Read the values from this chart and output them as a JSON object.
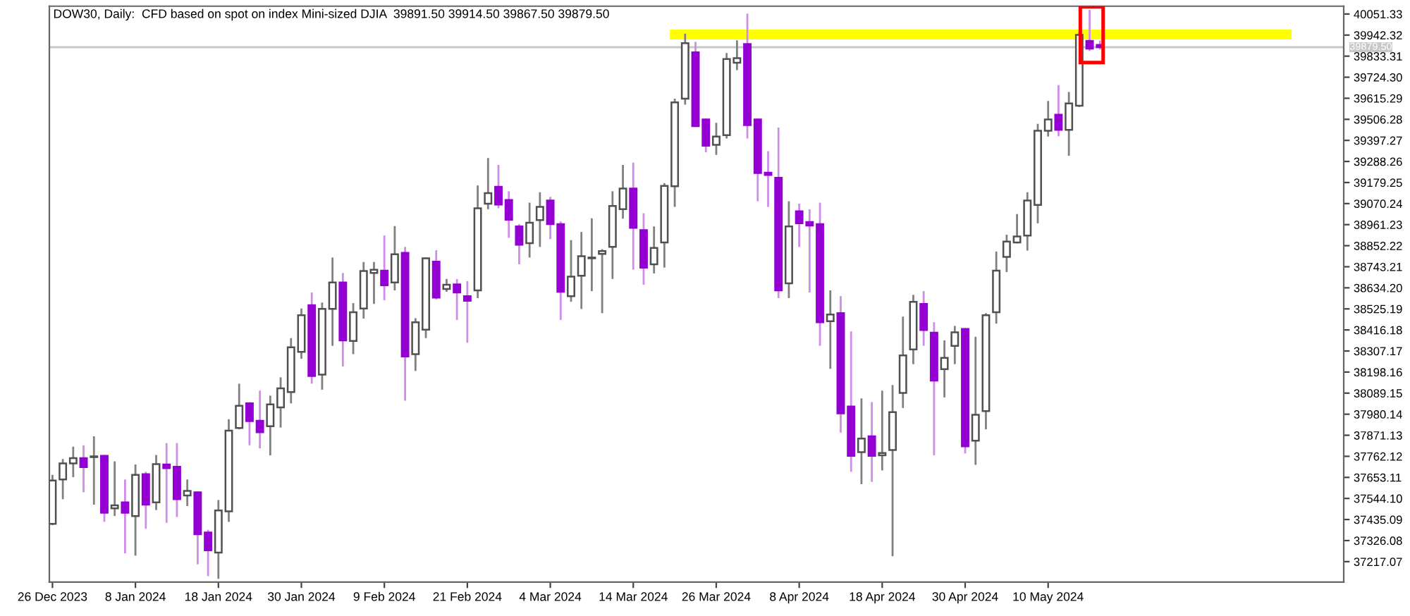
{
  "chart_data": {
    "type": "candlestick",
    "title": "DOW30, Daily:  CFD based on spot on index Mini-sized DJIA  39891.50 39914.50 39867.50 39879.50",
    "categories": [
      "26 Dec 2023",
      null,
      null,
      null,
      null,
      null,
      null,
      null,
      "8 Jan 2024",
      null,
      null,
      null,
      null,
      null,
      null,
      null,
      "18 Jan 2024",
      null,
      null,
      null,
      null,
      null,
      null,
      null,
      "30 Jan 2024",
      null,
      null,
      null,
      null,
      null,
      null,
      null,
      "9 Feb 2024",
      null,
      null,
      null,
      null,
      null,
      null,
      null,
      "21 Feb 2024",
      null,
      null,
      null,
      null,
      null,
      null,
      null,
      "4 Mar 2024",
      null,
      null,
      null,
      null,
      null,
      null,
      null,
      "14 Mar 2024",
      null,
      null,
      null,
      null,
      null,
      null,
      null,
      "26 Mar 2024",
      null,
      null,
      null,
      null,
      null,
      null,
      null,
      "8 Apr 2024",
      null,
      null,
      null,
      null,
      null,
      null,
      null,
      "18 Apr 2024",
      null,
      null,
      null,
      null,
      null,
      null,
      null,
      "30 Apr 2024",
      null,
      null,
      null,
      null,
      null,
      null,
      null,
      "10 May 2024",
      null,
      null,
      null,
      null,
      null,
      null,
      null,
      null,
      null,
      null,
      null,
      null,
      null,
      null,
      null,
      null,
      null,
      null,
      null,
      null,
      null,
      null,
      null,
      null,
      null,
      null,
      null,
      null
    ],
    "ohlc": [
      [
        37413,
        37666,
        37406,
        37637
      ],
      [
        37642,
        37748,
        37540,
        37725
      ],
      [
        37725,
        37812,
        37654,
        37753
      ],
      [
        37753,
        37819,
        37576,
        37706
      ],
      [
        37758,
        37866,
        37512,
        37760
      ],
      [
        37765,
        37769,
        37423,
        37470
      ],
      [
        37493,
        37736,
        37453,
        37508
      ],
      [
        37524,
        37642,
        37260,
        37470
      ],
      [
        37453,
        37720,
        37248,
        37666
      ],
      [
        37670,
        37682,
        37387,
        37512
      ],
      [
        37524,
        37769,
        37484,
        37722
      ],
      [
        37720,
        37831,
        37418,
        37701
      ],
      [
        37708,
        37831,
        37448,
        37540
      ],
      [
        37559,
        37642,
        37505,
        37583
      ],
      [
        37576,
        37581,
        37203,
        37359
      ],
      [
        37368,
        37382,
        37142,
        37276
      ],
      [
        37264,
        37536,
        37128,
        37482
      ],
      [
        37477,
        37954,
        37423,
        37895
      ],
      [
        37909,
        38138,
        37902,
        38024
      ],
      [
        38036,
        38043,
        37819,
        37944
      ],
      [
        37946,
        38102,
        37803,
        37887
      ],
      [
        37918,
        38076,
        37767,
        38031
      ],
      [
        38015,
        38171,
        37911,
        38114
      ],
      [
        38095,
        38374,
        38036,
        38326
      ],
      [
        38303,
        38527,
        38267,
        38492
      ],
      [
        38544,
        38610,
        38138,
        38178
      ],
      [
        38185,
        38558,
        38107,
        38525
      ],
      [
        38525,
        38791,
        38334,
        38662
      ],
      [
        38662,
        38711,
        38227,
        38362
      ],
      [
        38359,
        38555,
        38291,
        38508
      ],
      [
        38527,
        38768,
        38475,
        38721
      ],
      [
        38711,
        38768,
        38551,
        38728
      ],
      [
        38723,
        38905,
        38570,
        38647
      ],
      [
        38662,
        38954,
        38621,
        38808
      ],
      [
        38815,
        38846,
        38050,
        38279
      ],
      [
        38291,
        38477,
        38204,
        38456
      ],
      [
        38418,
        38791,
        38374,
        38787
      ],
      [
        38770,
        38829,
        38574,
        38584
      ],
      [
        38628,
        38680,
        38614,
        38650
      ],
      [
        38652,
        38680,
        38468,
        38610
      ],
      [
        38591,
        38669,
        38350,
        38567
      ],
      [
        38621,
        39164,
        38581,
        39046
      ],
      [
        39070,
        39306,
        39041,
        39124
      ],
      [
        39157,
        39270,
        39046,
        39065
      ],
      [
        39089,
        39134,
        38893,
        38987
      ],
      [
        38952,
        38964,
        38756,
        38857
      ],
      [
        38865,
        39075,
        38791,
        38971
      ],
      [
        38985,
        39129,
        38846,
        39053
      ],
      [
        39086,
        39105,
        38886,
        38964
      ],
      [
        38964,
        38978,
        38468,
        38614
      ],
      [
        38591,
        38881,
        38562,
        38692
      ],
      [
        38697,
        38923,
        38525,
        38798
      ],
      [
        38787,
        38994,
        38617,
        38789
      ],
      [
        38810,
        38834,
        38503,
        38824
      ],
      [
        38846,
        39134,
        38680,
        39058
      ],
      [
        39041,
        39270,
        38992,
        39148
      ],
      [
        39148,
        39282,
        38728,
        38945
      ],
      [
        38933,
        39020,
        38650,
        38739
      ],
      [
        38756,
        38952,
        38709,
        38841
      ],
      [
        38869,
        39176,
        38739,
        39162
      ],
      [
        39160,
        39613,
        39053,
        39594
      ],
      [
        39613,
        39950,
        39582,
        39900
      ],
      [
        39853,
        39908,
        39466,
        39471
      ],
      [
        39506,
        39511,
        39336,
        39370
      ],
      [
        39374,
        39488,
        39322,
        39417
      ],
      [
        39424,
        39849,
        39407,
        39818
      ],
      [
        39799,
        39915,
        39761,
        39823
      ],
      [
        39896,
        40054,
        39407,
        39476
      ],
      [
        39506,
        39511,
        39082,
        39228
      ],
      [
        39230,
        39341,
        39053,
        39218
      ],
      [
        39204,
        39464,
        38581,
        38621
      ],
      [
        38657,
        39082,
        38581,
        38952
      ],
      [
        39030,
        39070,
        38846,
        38968
      ],
      [
        38975,
        39041,
        38610,
        38957
      ],
      [
        38964,
        39075,
        38334,
        38456
      ],
      [
        38461,
        38621,
        38215,
        38496
      ],
      [
        38503,
        38591,
        37885,
        37984
      ],
      [
        38020,
        38409,
        37682,
        37765
      ],
      [
        37784,
        38062,
        37618,
        37854
      ],
      [
        37866,
        38043,
        37630,
        37765
      ],
      [
        37767,
        38102,
        37689,
        37779
      ],
      [
        37795,
        38131,
        37245,
        37991
      ],
      [
        38090,
        38485,
        38012,
        38284
      ],
      [
        38315,
        38598,
        38239,
        38562
      ],
      [
        38551,
        38617,
        38334,
        38416
      ],
      [
        38402,
        38456,
        37767,
        38154
      ],
      [
        38213,
        38362,
        38067,
        38272
      ],
      [
        38334,
        38437,
        38239,
        38404
      ],
      [
        38421,
        38426,
        37777,
        37814
      ],
      [
        37843,
        38381,
        37718,
        37977
      ],
      [
        37996,
        38503,
        37902,
        38492
      ],
      [
        38508,
        38822,
        38449,
        38723
      ],
      [
        38794,
        38909,
        38716,
        38874
      ],
      [
        38869,
        39016,
        38864,
        38900
      ],
      [
        38905,
        39129,
        38827,
        39086
      ],
      [
        39063,
        39483,
        38968,
        39447
      ],
      [
        39447,
        39601,
        39417,
        39506
      ],
      [
        39530,
        39683,
        39419,
        39452
      ],
      [
        39452,
        39648,
        39318,
        39589
      ],
      [
        39577,
        39955,
        39570,
        39943
      ],
      [
        39912,
        40073,
        39860,
        39872
      ],
      [
        39891.5,
        39914.5,
        39867.5,
        39879.5
      ],
      null,
      null,
      null,
      null,
      null,
      null,
      null,
      null,
      null,
      null,
      null,
      null,
      null,
      null,
      null,
      null,
      null,
      null,
      null,
      null,
      null,
      null,
      null
    ],
    "colors": [
      "#ffffff",
      "#ffffff",
      "#ffffff",
      "#9400d3",
      "#ffffff",
      "#9400d3",
      "#ffffff",
      "#9400d3",
      "#ffffff",
      "#9400d3",
      "#ffffff",
      "#9400d3",
      "#9400d3",
      "#ffffff",
      "#9400d3",
      "#9400d3",
      "#ffffff",
      "#ffffff",
      "#ffffff",
      "#9400d3",
      "#9400d3",
      "#ffffff",
      "#ffffff",
      "#ffffff",
      "#ffffff",
      "#9400d3",
      "#ffffff",
      "#ffffff",
      "#9400d3",
      "#ffffff",
      "#ffffff",
      "#ffffff",
      "#9400d3",
      "#ffffff",
      "#9400d3",
      "#ffffff",
      "#ffffff",
      "#9400d3",
      "#ffffff",
      "#9400d3",
      "#9400d3",
      "#ffffff",
      "#ffffff",
      "#9400d3",
      "#9400d3",
      "#9400d3",
      "#ffffff",
      "#ffffff",
      "#9400d3",
      "#9400d3",
      "#ffffff",
      "#ffffff",
      "#ffffff",
      "#ffffff",
      "#ffffff",
      "#ffffff",
      "#9400d3",
      "#9400d3",
      "#ffffff",
      "#ffffff",
      "#ffffff",
      "#ffffff",
      "#9400d3",
      "#9400d3",
      "#ffffff",
      "#ffffff",
      "#ffffff",
      "#9400d3",
      "#9400d3",
      "#9400d3",
      "#9400d3",
      "#ffffff",
      "#9400d3",
      "#9400d3",
      "#9400d3",
      "#ffffff",
      "#9400d3",
      "#9400d3",
      "#ffffff",
      "#9400d3",
      "#ffffff",
      "#ffffff",
      "#ffffff",
      "#ffffff",
      "#9400d3",
      "#9400d3",
      "#ffffff",
      "#ffffff",
      "#9400d3",
      "#ffffff",
      "#ffffff",
      "#ffffff",
      "#ffffff",
      "#ffffff",
      "#ffffff",
      "#ffffff",
      "#ffffff",
      "#9400d3",
      "#ffffff",
      "#ffffff",
      "#9400d3",
      "#9400d3",
      null,
      null,
      null,
      null,
      null,
      null,
      null,
      null,
      null,
      null,
      null,
      null,
      null,
      null,
      null,
      null,
      null,
      null,
      null,
      null,
      null,
      null,
      null
    ],
    "series": [
      {
        "type": "line",
        "color": "#ffff00",
        "values": [
          null,
          null,
          null,
          null,
          null,
          null,
          null,
          null,
          null,
          null,
          null,
          null,
          null,
          null,
          null,
          null,
          null,
          null,
          null,
          null,
          null,
          null,
          null,
          null,
          null,
          null,
          null,
          null,
          null,
          null,
          null,
          null,
          null,
          null,
          null,
          null,
          null,
          null,
          null,
          null,
          null,
          null,
          null,
          null,
          null,
          null,
          null,
          null,
          null,
          null,
          null,
          null,
          null,
          null,
          null,
          null,
          null,
          null,
          null,
          null,
          39945,
          39945,
          39945,
          39945,
          39945,
          39945,
          39945,
          39945,
          39945,
          39945,
          39945,
          39945,
          39945,
          39945,
          39945,
          39945,
          39945,
          39945,
          39945,
          39945,
          39945,
          39945,
          39945,
          39945,
          39945,
          39945,
          39945,
          39945,
          39945,
          39945,
          39945,
          39945,
          39945,
          39945,
          39945,
          39945,
          39945,
          39945,
          39945,
          39945,
          39945,
          39945,
          39945,
          39945,
          39945,
          39945,
          39945,
          39945,
          39945,
          39945,
          39945,
          39945,
          39945,
          39945,
          39945,
          39945,
          39945,
          39945,
          39945,
          39945,
          null,
          null,
          null,
          null,
          null
        ]
      }
    ],
    "ylim": [
      37111,
      40092
    ],
    "yticks": [
      40051.33,
      39942.32,
      39833.31,
      {
        "value": 39724.3,
        "label": "39724.30"
      },
      39615.29,
      39506.28,
      39397.27,
      39288.26,
      39179.25,
      39070.24,
      38961.23,
      38852.22,
      38743.21,
      {
        "value": 38634.2,
        "label": "38634.20"
      },
      38525.19,
      38416.18,
      38307.17,
      38198.16,
      38089.15,
      37980.14,
      37871.13,
      37762.12,
      37653.11,
      {
        "value": 37544.1,
        "label": "37544.10"
      },
      37435.09,
      37326.08,
      37217.07
    ],
    "ref_lines": [
      {
        "axis": "y",
        "value": 39879.5,
        "label": "39879.50",
        "color": "#c8c8c8",
        "line_style": "solid"
      }
    ],
    "grid": false
  }
}
